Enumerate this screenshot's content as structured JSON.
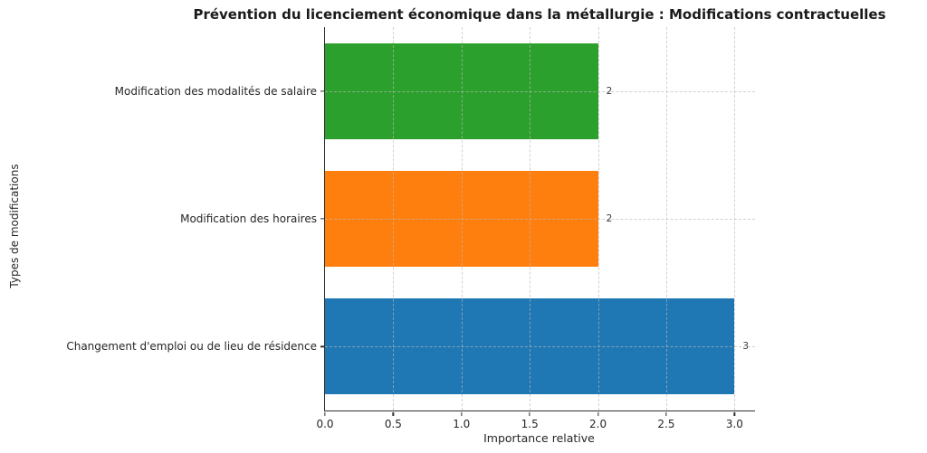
{
  "chart_data": {
    "type": "bar",
    "orientation": "horizontal",
    "title": "Prévention du licenciement économique dans la métallurgie : Modifications contractuelles",
    "xlabel": "Importance relative",
    "ylabel": "Types de modifications",
    "categories": [
      "Modification des modalités de salaire",
      "Modification des horaires",
      "Changement d'emploi ou de lieu de résidence"
    ],
    "values": [
      2,
      2,
      3
    ],
    "value_labels": [
      "2",
      "2",
      "3"
    ],
    "bar_colors": [
      "#2ca02c",
      "#ff7f0e",
      "#1f77b4"
    ],
    "xlim": [
      0,
      3.15
    ],
    "xticks": [
      0,
      0.5,
      1,
      1.5,
      2,
      2.5,
      3
    ],
    "xtick_labels": [
      "0.0",
      "0.5",
      "1.0",
      "1.5",
      "2.0",
      "2.5",
      "3.0"
    ],
    "grid": true,
    "grid_style": "dashed",
    "legend": false
  },
  "colors": {
    "spine": "#2e2e2e",
    "grid": "#bababa",
    "text": "#262626"
  }
}
